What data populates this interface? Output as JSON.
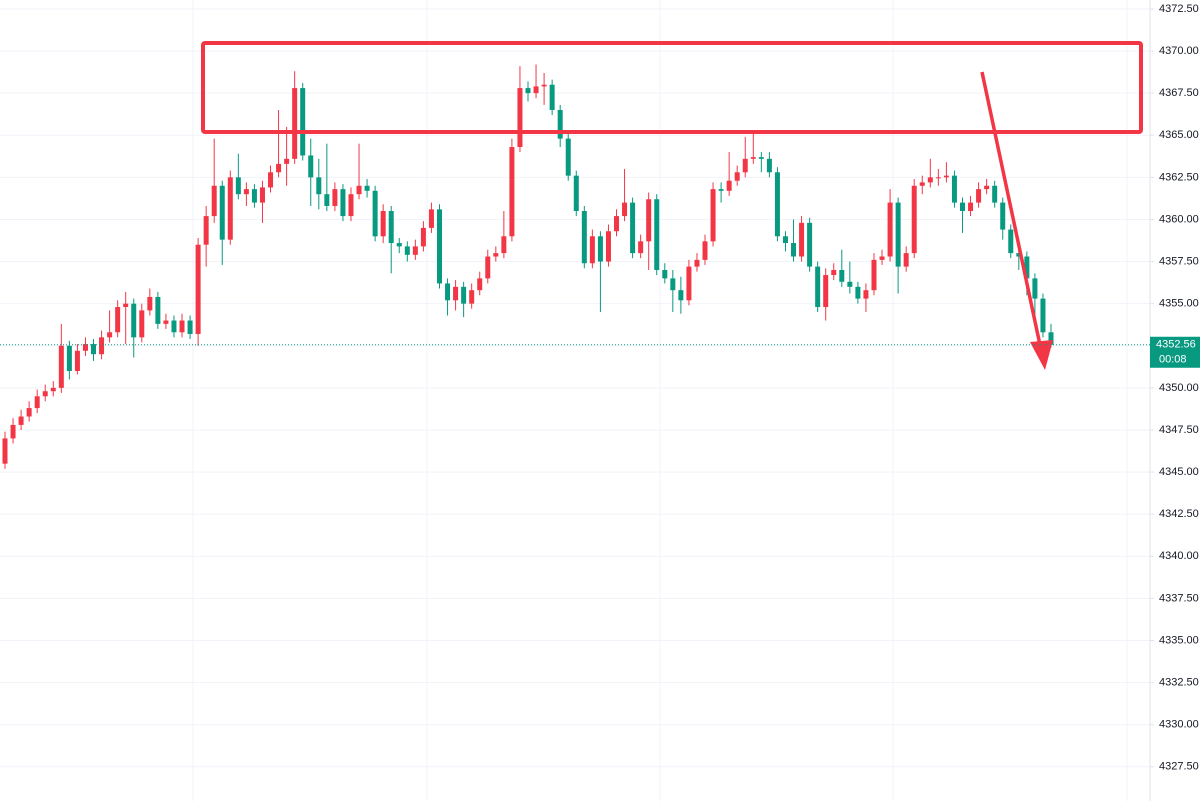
{
  "chart_data": {
    "type": "candlestick",
    "up_color": "#f23645",
    "down_color": "#089981",
    "grid": true,
    "ylim": [
      4325.47,
      4373.03
    ],
    "yticks": [
      {
        "value": 4327.5,
        "label": "4327.50"
      },
      {
        "value": 4330,
        "label": "4330.00"
      },
      {
        "value": 4332.5,
        "label": "4332.50"
      },
      {
        "value": 4335,
        "label": "4335.00"
      },
      {
        "value": 4337.5,
        "label": "4337.50"
      },
      {
        "value": 4340,
        "label": "4340.00"
      },
      {
        "value": 4342.5,
        "label": "4342.50"
      },
      {
        "value": 4345,
        "label": "4345.00"
      },
      {
        "value": 4347.5,
        "label": "4347.50"
      },
      {
        "value": 4350,
        "label": "4350.00"
      },
      {
        "value": 4352.5,
        "label": "4352.50"
      },
      {
        "value": 4355,
        "label": "4355.00"
      },
      {
        "value": 4357.5,
        "label": "4357.50"
      },
      {
        "value": 4360,
        "label": "4360.00"
      },
      {
        "value": 4362.5,
        "label": "4362.50"
      },
      {
        "value": 4365,
        "label": "4365.00"
      },
      {
        "value": 4367.5,
        "label": "4367.50"
      },
      {
        "value": 4370,
        "label": "4370.00"
      },
      {
        "value": 4372.5,
        "label": "4372.50"
      }
    ],
    "last_price": 4352.56,
    "countdown": "00:08",
    "open": [
      4345.5,
      4347.0,
      4347.8,
      4348.3,
      4348.8,
      4349.5,
      4349.8,
      4350.0,
      4352.5,
      4351.0,
      4352.2,
      4352.6,
      4352.0,
      4353.0,
      4353.3,
      4354.8,
      4355.0,
      4353.0,
      4354.6,
      4355.4,
      4353.8,
      4354.0,
      4353.3,
      4354.0,
      4353.2,
      4358.5,
      4360.2,
      4362.0,
      4358.8,
      4362.5,
      4361.5,
      4361.8,
      4361.0,
      4361.9,
      4362.8,
      4363.3,
      4363.6,
      4367.8,
      4363.8,
      4362.5,
      4361.5,
      4360.8,
      4361.8,
      4360.2,
      4361.5,
      4362.0,
      4361.7,
      4359.0,
      4360.5,
      4358.6,
      4358.4,
      4357.9,
      4358.4,
      4359.5,
      4360.6,
      4356.2,
      4355.2,
      4356.0,
      4355.0,
      4355.8,
      4356.5,
      4357.8,
      4358.0,
      4359.0,
      4364.3,
      4367.8,
      4367.5,
      4367.9,
      4368.0,
      4366.5,
      4364.8,
      4362.6,
      4360.5,
      4357.4,
      4359.0,
      4357.5,
      4359.3,
      4360.2,
      4361.0,
      4358.0,
      4358.7,
      4361.2,
      4357.0,
      4356.5,
      4355.8,
      4355.2,
      4357.2,
      4357.6,
      4358.7,
      4361.8,
      4361.7,
      4362.3,
      4362.8,
      4363.6,
      4363.7,
      4363.6,
      4362.8,
      4359.0,
      4358.6,
      4357.8,
      4359.8,
      4357.2,
      4354.8,
      4356.7,
      4357.0,
      4356.3,
      4356.0,
      4355.3,
      4355.8,
      4357.6,
      4357.8,
      4361.0,
      4357.2,
      4358.0,
      4362.0,
      4362.2,
      4362.5,
      4362.5,
      4362.6,
      4361.0,
      4360.5,
      4361.0,
      4361.8,
      4362.0,
      4361.0,
      4359.4,
      4358.0,
      4357.8,
      4356.5,
      4355.3,
      4353.3
    ],
    "high": [
      4347.4,
      4348.2,
      4348.7,
      4349.2,
      4349.9,
      4350.2,
      4350.4,
      4353.8,
      4352.8,
      4352.6,
      4353.0,
      4352.9,
      4353.4,
      4354.6,
      4355.2,
      4355.7,
      4355.3,
      4355.0,
      4355.9,
      4355.7,
      4354.4,
      4354.3,
      4354.4,
      4354.3,
      4358.9,
      4360.8,
      4364.8,
      4362.3,
      4362.9,
      4363.9,
      4362.2,
      4362.1,
      4362.3,
      4363.2,
      4366.5,
      4365.5,
      4368.8,
      4368.1,
      4364.8,
      4363.6,
      4364.5,
      4362.2,
      4362.1,
      4361.9,
      4364.5,
      4362.4,
      4362.0,
      4360.9,
      4360.8,
      4358.9,
      4358.7,
      4358.8,
      4359.9,
      4361.0,
      4360.9,
      4356.5,
      4356.4,
      4356.3,
      4356.2,
      4356.9,
      4358.2,
      4358.4,
      4360.5,
      4364.8,
      4369.1,
      4368.2,
      4369.2,
      4368.7,
      4368.3,
      4366.8,
      4365.1,
      4362.9,
      4360.8,
      4359.4,
      4359.3,
      4359.7,
      4360.6,
      4363.0,
      4361.3,
      4359.1,
      4361.6,
      4361.5,
      4357.4,
      4357.0,
      4356.6,
      4357.6,
      4358.0,
      4359.1,
      4362.2,
      4362.2,
      4364.0,
      4363.2,
      4364.9,
      4365.2,
      4364.0,
      4364.0,
      4363.1,
      4359.3,
      4360.0,
      4360.2,
      4360.1,
      4357.5,
      4357.1,
      4357.4,
      4358.2,
      4357.5,
      4356.3,
      4356.2,
      4358.0,
      4358.2,
      4361.8,
      4361.3,
      4358.4,
      4362.4,
      4362.6,
      4363.6,
      4363.0,
      4363.4,
      4362.9,
      4361.3,
      4361.4,
      4362.2,
      4362.4,
      4362.3,
      4361.3,
      4359.7,
      4358.3,
      4358.1,
      4356.8,
      4355.6,
      4353.8
    ],
    "low": [
      4345.2,
      4346.7,
      4347.5,
      4348.0,
      4348.5,
      4349.2,
      4349.5,
      4349.7,
      4350.5,
      4350.8,
      4351.9,
      4351.6,
      4351.7,
      4352.7,
      4353.0,
      4352.6,
      4351.8,
      4352.7,
      4354.3,
      4353.5,
      4353.5,
      4353.0,
      4353.0,
      4352.9,
      4352.5,
      4357.2,
      4359.8,
      4357.3,
      4358.5,
      4361.2,
      4360.8,
      4360.7,
      4359.8,
      4361.6,
      4362.5,
      4362.0,
      4363.3,
      4363.5,
      4360.8,
      4360.6,
      4360.5,
      4360.5,
      4359.9,
      4359.9,
      4361.2,
      4361.3,
      4358.7,
      4358.6,
      4356.8,
      4358.0,
      4357.5,
      4357.6,
      4358.1,
      4359.2,
      4355.9,
      4354.3,
      4354.6,
      4354.2,
      4354.7,
      4355.5,
      4356.2,
      4357.5,
      4357.7,
      4358.7,
      4364.0,
      4367.0,
      4367.2,
      4366.8,
      4366.2,
      4364.3,
      4362.3,
      4360.2,
      4357.1,
      4357.1,
      4354.5,
      4357.2,
      4359.0,
      4359.9,
      4357.7,
      4357.7,
      4357.0,
      4356.7,
      4356.2,
      4354.5,
      4354.4,
      4354.9,
      4356.9,
      4357.3,
      4358.4,
      4361.0,
      4361.4,
      4362.0,
      4362.5,
      4363.3,
      4362.8,
      4362.5,
      4358.7,
      4358.1,
      4357.5,
      4357.5,
      4356.9,
      4354.5,
      4354.0,
      4356.4,
      4356.0,
      4355.6,
      4355.0,
      4354.5,
      4355.5,
      4357.3,
      4357.5,
      4355.6,
      4356.9,
      4357.7,
      4361.5,
      4361.9,
      4362.0,
      4362.2,
      4360.7,
      4359.2,
      4360.2,
      4360.7,
      4361.5,
      4360.7,
      4358.8,
      4357.7,
      4357.0,
      4355.5,
      4354.0,
      4353.0,
      4352.4
    ],
    "close": [
      4347.0,
      4347.8,
      4348.3,
      4348.8,
      4349.5,
      4349.8,
      4350.0,
      4352.5,
      4351.0,
      4352.2,
      4352.6,
      4352.0,
      4353.0,
      4353.3,
      4354.8,
      4355.0,
      4353.0,
      4354.6,
      4355.4,
      4353.8,
      4354.0,
      4353.3,
      4354.0,
      4353.2,
      4358.5,
      4360.2,
      4362.0,
      4358.8,
      4362.5,
      4361.5,
      4361.8,
      4361.0,
      4361.9,
      4362.8,
      4363.3,
      4363.6,
      4367.8,
      4363.8,
      4362.5,
      4361.5,
      4360.8,
      4361.8,
      4360.2,
      4361.5,
      4362.0,
      4361.7,
      4359.0,
      4360.5,
      4358.6,
      4358.4,
      4357.9,
      4358.4,
      4359.5,
      4360.6,
      4356.2,
      4355.2,
      4356.0,
      4355.0,
      4355.8,
      4356.5,
      4357.8,
      4358.0,
      4359.0,
      4364.3,
      4367.8,
      4367.5,
      4367.9,
      4368.0,
      4366.5,
      4364.8,
      4362.6,
      4360.5,
      4357.4,
      4359.0,
      4357.5,
      4359.3,
      4360.2,
      4361.0,
      4358.0,
      4358.7,
      4361.2,
      4357.0,
      4356.5,
      4355.8,
      4355.2,
      4357.2,
      4357.6,
      4358.7,
      4361.8,
      4361.7,
      4362.3,
      4362.8,
      4363.6,
      4363.7,
      4363.6,
      4362.8,
      4359.0,
      4358.6,
      4357.8,
      4359.8,
      4357.2,
      4354.8,
      4356.7,
      4357.0,
      4356.3,
      4356.0,
      4355.3,
      4355.8,
      4357.6,
      4357.8,
      4361.0,
      4357.2,
      4358.0,
      4362.0,
      4362.2,
      4362.5,
      4362.5,
      4362.6,
      4361.0,
      4360.5,
      4361.0,
      4361.8,
      4362.0,
      4361.0,
      4359.4,
      4358.0,
      4357.8,
      4356.5,
      4355.3,
      4353.3,
      4352.56
    ]
  }
}
